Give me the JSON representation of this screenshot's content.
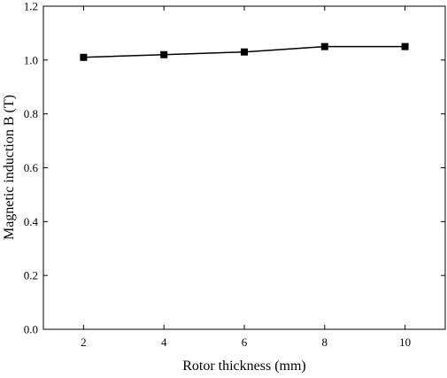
{
  "chart_data": {
    "type": "line",
    "xlabel": "Rotor thickness (mm)",
    "ylabel": "Magnetic induction B (T)",
    "xlim": [
      1,
      11
    ],
    "ylim": [
      0.0,
      1.2
    ],
    "xticks": [
      "2",
      "4",
      "6",
      "8",
      "10"
    ],
    "yticks": [
      "0.0",
      "0.2",
      "0.4",
      "0.6",
      "0.8",
      "1.0",
      "1.2"
    ],
    "grid": false,
    "legend": "none",
    "marker": "square",
    "line_color": "#000000",
    "series": [
      {
        "x": [
          2,
          4,
          6,
          8,
          10
        ],
        "y": [
          1.01,
          1.02,
          1.03,
          1.05,
          1.05
        ]
      }
    ]
  }
}
